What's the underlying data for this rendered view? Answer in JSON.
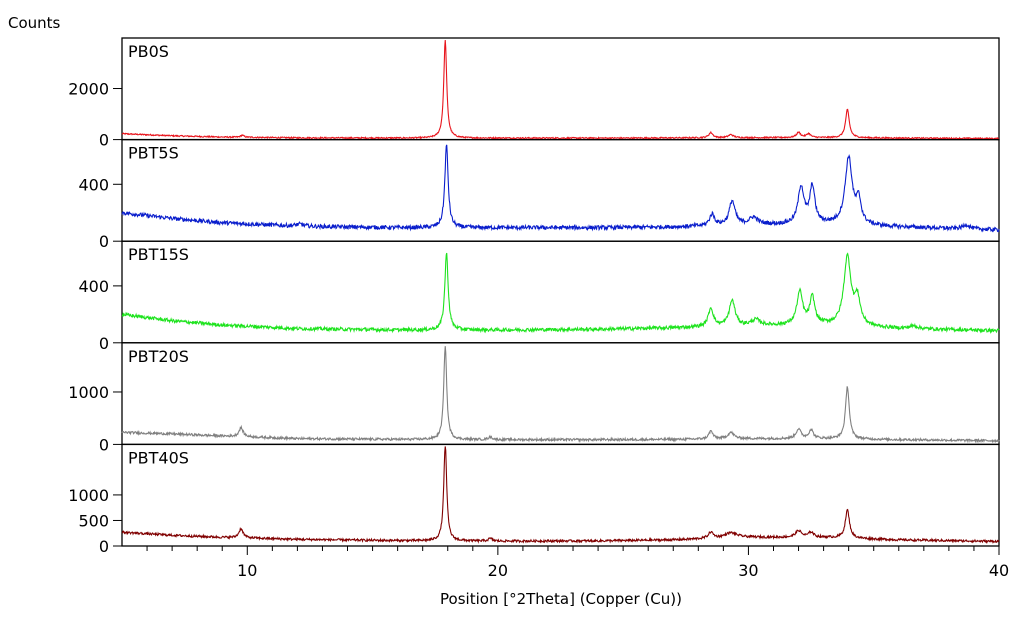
{
  "chart_data": {
    "type": "line",
    "ylabel": "Counts",
    "xlabel": "Position [°2Theta] (Copper (Cu))",
    "xlim": [
      5,
      40
    ],
    "x_ticks": [
      10,
      20,
      30,
      40
    ],
    "grid": false,
    "panels": [
      {
        "name": "PB0S",
        "color": "#e8141c",
        "ylim": [
          0,
          3900
        ],
        "y_ticks": [
          0,
          2000
        ],
        "baseline": [
          [
            5,
            230
          ],
          [
            7,
            150
          ],
          [
            9,
            100
          ],
          [
            12,
            70
          ],
          [
            16,
            60
          ],
          [
            20,
            60
          ],
          [
            25,
            60
          ],
          [
            28,
            70
          ],
          [
            32,
            80
          ],
          [
            36,
            60
          ],
          [
            40,
            40
          ]
        ],
        "peaks": [
          [
            9.8,
            80,
            0.08
          ],
          [
            17.9,
            3850,
            0.07
          ],
          [
            28.5,
            200,
            0.1
          ],
          [
            29.3,
            120,
            0.12
          ],
          [
            32.0,
            200,
            0.1
          ],
          [
            32.4,
            150,
            0.1
          ],
          [
            33.95,
            1100,
            0.09
          ]
        ],
        "noise": 25
      },
      {
        "name": "PBT5S",
        "color": "#0a1ecc",
        "ylim": [
          0,
          700
        ],
        "y_ticks": [
          0,
          400
        ],
        "baseline": [
          [
            5,
            200
          ],
          [
            7,
            160
          ],
          [
            9,
            130
          ],
          [
            12,
            105
          ],
          [
            16,
            95
          ],
          [
            20,
            95
          ],
          [
            24,
            95
          ],
          [
            27,
            100
          ],
          [
            30,
            115
          ],
          [
            33,
            120
          ],
          [
            36,
            100
          ],
          [
            40,
            80
          ]
        ],
        "peaks": [
          [
            12.1,
            15,
            0.2
          ],
          [
            17.95,
            580,
            0.08
          ],
          [
            28.55,
            80,
            0.12
          ],
          [
            29.35,
            170,
            0.14
          ],
          [
            30.2,
            50,
            0.2
          ],
          [
            32.1,
            260,
            0.14
          ],
          [
            32.55,
            260,
            0.12
          ],
          [
            34.0,
            470,
            0.17
          ],
          [
            34.4,
            160,
            0.12
          ],
          [
            38.7,
            30,
            0.15
          ]
        ],
        "noise": 14
      },
      {
        "name": "PBT15S",
        "color": "#1ee31e",
        "ylim": [
          0,
          700
        ],
        "y_ticks": [
          0,
          400
        ],
        "baseline": [
          [
            5,
            200
          ],
          [
            7,
            155
          ],
          [
            9,
            125
          ],
          [
            12,
            100
          ],
          [
            16,
            90
          ],
          [
            20,
            90
          ],
          [
            24,
            95
          ],
          [
            27,
            105
          ],
          [
            30,
            120
          ],
          [
            33,
            125
          ],
          [
            36,
            100
          ],
          [
            40,
            85
          ]
        ],
        "peaks": [
          [
            17.95,
            540,
            0.08
          ],
          [
            28.5,
            130,
            0.12
          ],
          [
            29.35,
            180,
            0.14
          ],
          [
            30.3,
            40,
            0.2
          ],
          [
            32.05,
            230,
            0.14
          ],
          [
            32.55,
            190,
            0.12
          ],
          [
            33.95,
            480,
            0.17
          ],
          [
            34.35,
            180,
            0.14
          ],
          [
            36.6,
            20,
            0.2
          ]
        ],
        "noise": 12
      },
      {
        "name": "PBT20S",
        "color": "#808080",
        "ylim": [
          0,
          1900
        ],
        "y_ticks": [
          0,
          1000
        ],
        "baseline": [
          [
            5,
            230
          ],
          [
            7,
            200
          ],
          [
            9,
            160
          ],
          [
            12,
            110
          ],
          [
            16,
            95
          ],
          [
            20,
            90
          ],
          [
            24,
            90
          ],
          [
            27,
            95
          ],
          [
            30,
            110
          ],
          [
            33,
            110
          ],
          [
            36,
            90
          ],
          [
            40,
            70
          ]
        ],
        "peaks": [
          [
            9.75,
            170,
            0.1
          ],
          [
            17.9,
            1800,
            0.07
          ],
          [
            19.7,
            50,
            0.1
          ],
          [
            28.5,
            150,
            0.1
          ],
          [
            29.3,
            120,
            0.15
          ],
          [
            32.0,
            180,
            0.12
          ],
          [
            32.5,
            170,
            0.1
          ],
          [
            33.95,
            1000,
            0.09
          ]
        ],
        "noise": 22
      },
      {
        "name": "PBT40S",
        "color": "#800000",
        "ylim": [
          0,
          1950
        ],
        "y_ticks": [
          0,
          500,
          1000
        ],
        "baseline": [
          [
            5,
            270
          ],
          [
            7,
            210
          ],
          [
            9,
            170
          ],
          [
            12,
            130
          ],
          [
            16,
            105
          ],
          [
            20,
            95
          ],
          [
            24,
            100
          ],
          [
            27,
            120
          ],
          [
            30,
            170
          ],
          [
            33,
            170
          ],
          [
            36,
            120
          ],
          [
            40,
            90
          ]
        ],
        "peaks": [
          [
            9.75,
            180,
            0.1
          ],
          [
            17.9,
            1900,
            0.07
          ],
          [
            19.7,
            50,
            0.1
          ],
          [
            28.5,
            120,
            0.12
          ],
          [
            29.3,
            100,
            0.3
          ],
          [
            32.0,
            130,
            0.14
          ],
          [
            32.5,
            100,
            0.12
          ],
          [
            33.95,
            550,
            0.1
          ]
        ],
        "noise": 22
      }
    ]
  }
}
